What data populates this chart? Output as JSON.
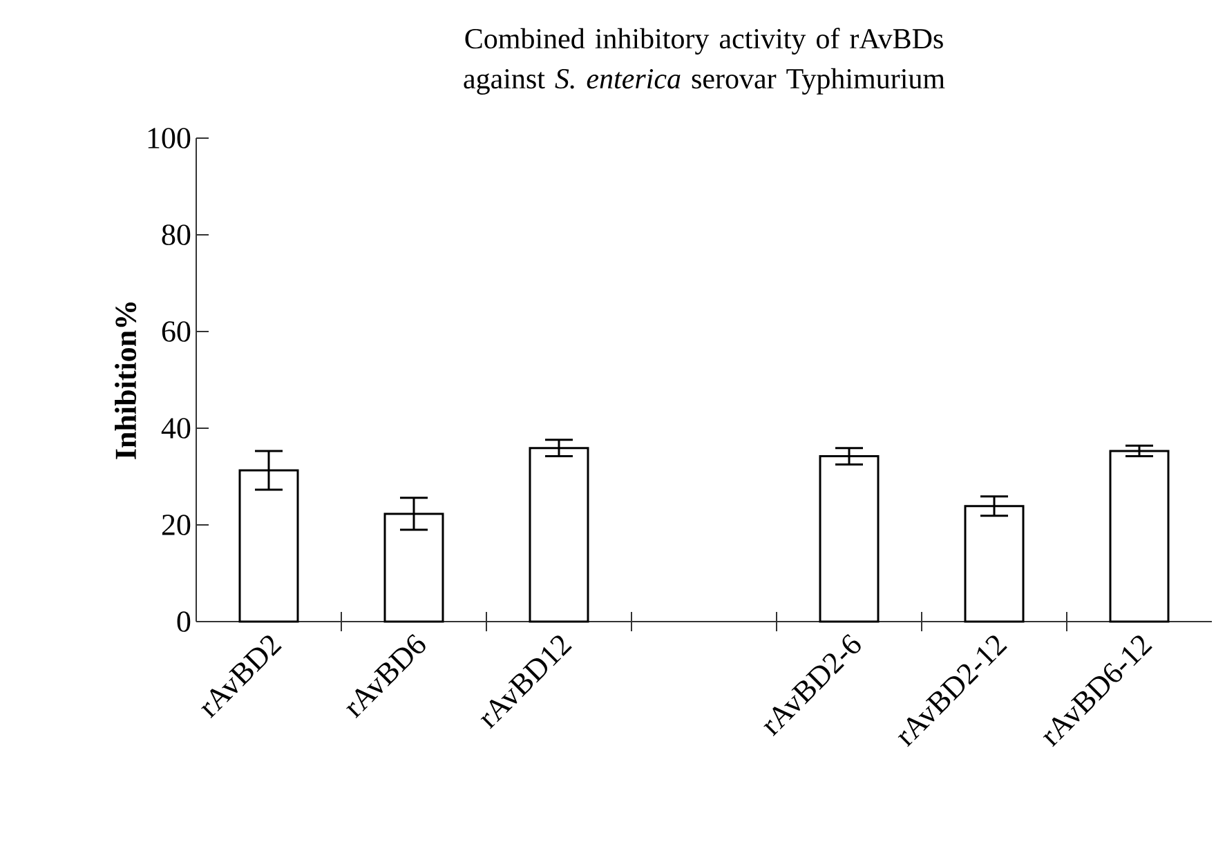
{
  "chart_data": {
    "type": "bar",
    "title": "Combined inhibitory activity of rAvBDs  against *S. enterica* serovar Typhimurium",
    "ylabel": "Inhibition%",
    "categories": [
      "rAvBD2",
      "rAvBD6",
      "rAvBD12",
      null,
      "rAvBD2-6",
      "rAvBD2-12",
      "rAvBD6-12"
    ],
    "values": [
      31.3,
      22.3,
      35.9,
      null,
      34.2,
      23.9,
      35.3
    ],
    "errors": [
      4,
      3.3,
      1.7,
      null,
      1.7,
      2,
      1.1
    ],
    "color": "#ffffff",
    "ylim": [
      0,
      100
    ],
    "yticks": [
      0,
      20,
      40,
      60,
      80,
      100
    ]
  }
}
